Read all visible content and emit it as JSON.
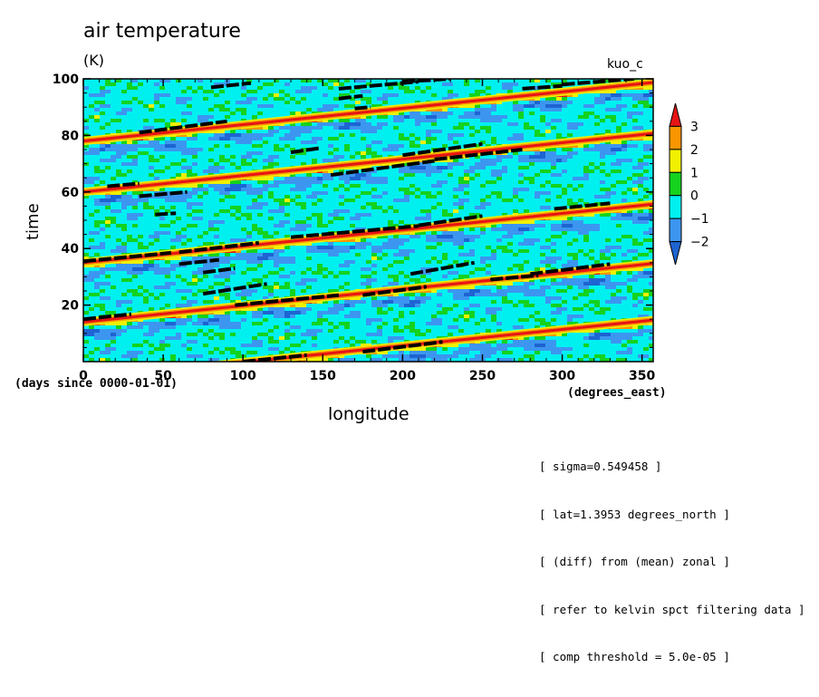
{
  "chart_data": {
    "type": "heatmap",
    "title": "air temperature",
    "units": "(K)",
    "case_label": "kuo_c",
    "xlabel": "longitude",
    "ylabel": "time",
    "x_units": "(degrees_east)",
    "time_units": "(days since 0000-01-01)",
    "xlim": [
      0,
      357
    ],
    "ylim": [
      0,
      100
    ],
    "x_ticks": [
      0,
      50,
      100,
      150,
      200,
      250,
      300,
      350
    ],
    "y_ticks": [
      20,
      40,
      60,
      80,
      100
    ],
    "colorbar": {
      "levels": [
        -2,
        -1,
        0,
        1,
        2,
        3
      ],
      "colors": [
        "#1e64d2",
        "#3c96f0",
        "#00f0f0",
        "#14d21e",
        "#f0f000",
        "#fa9600",
        "#e61414"
      ]
    },
    "wave_bands": [
      {
        "t0": 14,
        "slope": 0.058
      },
      {
        "t0": 35,
        "slope": 0.058
      },
      {
        "t0": 60,
        "slope": 0.058
      },
      {
        "t0": 78,
        "slope": 0.058
      },
      {
        "t0": -6,
        "slope": 0.058
      }
    ],
    "threshold_segments": [
      [
        0,
        15.0,
        30,
        16.8
      ],
      [
        100,
        0.0,
        140,
        2.3
      ],
      [
        175,
        3.5,
        225,
        7.0
      ],
      [
        0,
        35.5,
        55,
        38.5
      ],
      [
        60,
        38.7,
        110,
        42.0
      ],
      [
        130,
        44.0,
        210,
        48.0
      ],
      [
        210,
        48.2,
        250,
        51.5
      ],
      [
        295,
        54.0,
        330,
        56.0
      ],
      [
        60,
        34.5,
        85,
        36.0
      ],
      [
        75,
        31.5,
        95,
        33.0
      ],
      [
        75,
        24.0,
        115,
        27.5
      ],
      [
        95,
        20.0,
        160,
        23.5
      ],
      [
        175,
        23.5,
        215,
        26.5
      ],
      [
        205,
        31.0,
        245,
        35.0
      ],
      [
        255,
        29.0,
        285,
        30.5
      ],
      [
        280,
        31.0,
        330,
        34.5
      ],
      [
        35,
        58.5,
        65,
        60.0
      ],
      [
        15,
        62.0,
        35,
        63.0
      ],
      [
        45,
        52.0,
        58,
        52.5
      ],
      [
        155,
        66.0,
        220,
        71.0
      ],
      [
        220,
        71.5,
        275,
        75.0
      ],
      [
        200,
        73.0,
        250,
        77.0
      ],
      [
        130,
        74.0,
        148,
        75.5
      ],
      [
        35,
        81.0,
        90,
        85.0
      ],
      [
        160,
        93.0,
        175,
        94.0
      ],
      [
        170,
        89.5,
        180,
        90.0
      ],
      [
        160,
        96.5,
        210,
        99.0
      ],
      [
        200,
        99.0,
        230,
        100
      ],
      [
        80,
        97.0,
        105,
        98.5
      ],
      [
        275,
        96.5,
        300,
        97.5
      ],
      [
        300,
        98.0,
        345,
        100
      ]
    ]
  },
  "notes": [
    "[ sigma=0.549458 ]",
    "[ lat=1.3953 degrees_north ]",
    "[ (diff) from (mean) zonal ]",
    "[ refer to kelvin spct filtering data ]",
    "[ comp threshold = 5.0e-05 ]"
  ]
}
